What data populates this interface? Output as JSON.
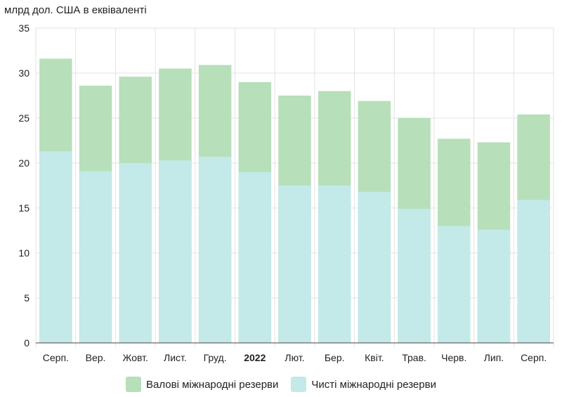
{
  "chart_data": {
    "type": "bar",
    "stacked": "overlay",
    "title": "млрд дол. США в еквіваленті",
    "categories": [
      "Серп.",
      "Вер.",
      "Жовт.",
      "Лист.",
      "Груд.",
      "2022",
      "Лют.",
      "Бер.",
      "Квіт.",
      "Трав.",
      "Черв.",
      "Лип.",
      "Серп."
    ],
    "bold_categories": [
      "2022"
    ],
    "series": [
      {
        "name": "Валові міжнародні резерви",
        "color": "#b7dfb9",
        "values": [
          31.6,
          28.6,
          29.6,
          30.5,
          30.9,
          29.0,
          27.5,
          28.0,
          26.9,
          25.0,
          22.7,
          22.3,
          25.4
        ]
      },
      {
        "name": "Чисті міжнародні резерви",
        "color": "#c3e9e9",
        "values": [
          21.3,
          19.1,
          20.0,
          20.3,
          20.7,
          19.0,
          17.5,
          17.5,
          16.8,
          14.9,
          13.0,
          12.6,
          15.9
        ]
      }
    ],
    "ylim": [
      0,
      35
    ],
    "yticks": [
      0,
      5,
      10,
      15,
      20,
      25,
      30,
      35
    ],
    "grid": true,
    "legend": "bottom"
  }
}
